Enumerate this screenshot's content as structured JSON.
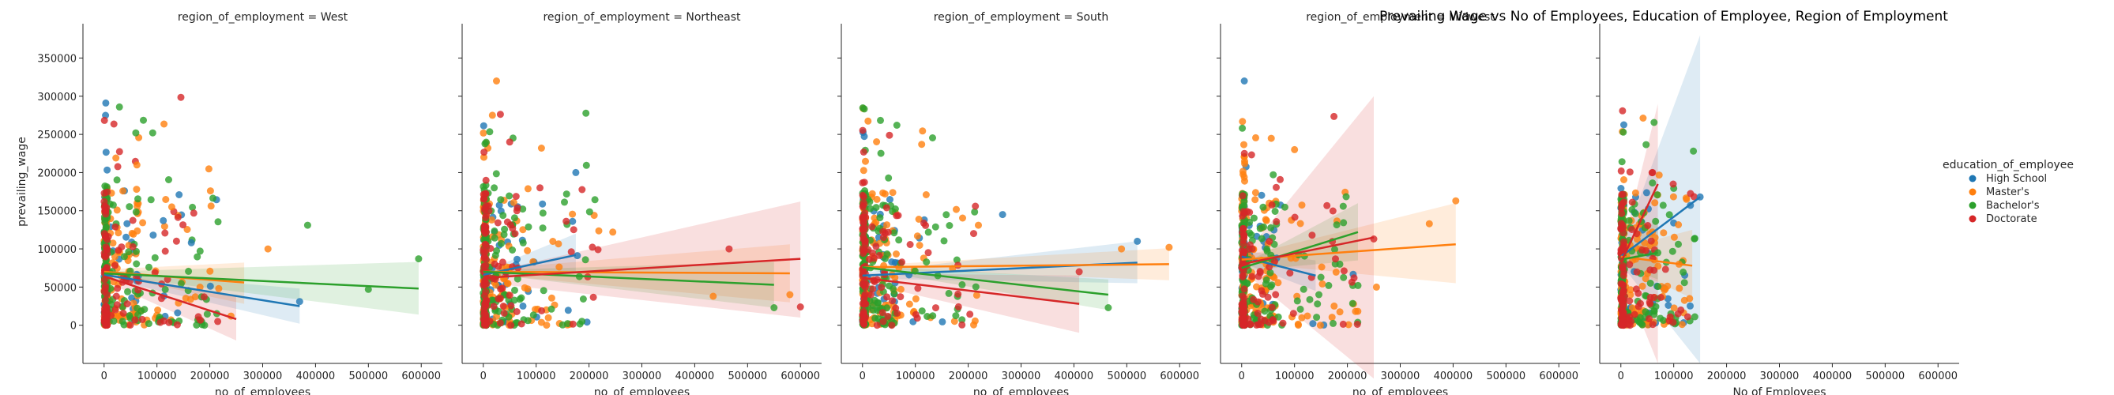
{
  "chart_data": {
    "type": "scatter",
    "title": "Prevailing Wage vs No of Employees, Education of Employee, Region of Employment",
    "ylabel": "prevailing_wage",
    "ylim": [
      -50000,
      395000
    ],
    "xlim": [
      -40000,
      640000
    ],
    "yticks": [
      0,
      50000,
      100000,
      150000,
      200000,
      250000,
      300000,
      350000
    ],
    "xticks": [
      0,
      100000,
      200000,
      300000,
      400000,
      500000,
      600000
    ],
    "grid": false,
    "legend": {
      "title": "education_of_employee",
      "placement": "right",
      "entries": [
        "High School",
        "Master's",
        "Bachelor's",
        "Doctorate"
      ]
    },
    "series_colors": {
      "High School": "#1f77b4",
      "Master's": "#ff7f0e",
      "Bachelor's": "#2ca02c",
      "Doctorate": "#d62728"
    },
    "panels": [
      {
        "title": "region_of_employment = West",
        "xlabel": "no_of_employees",
        "fits": [
          {
            "series": "High School",
            "x": [
              0,
              370000
            ],
            "y": [
              66000,
              25000
            ],
            "band": [
              [
                62000,
                70000
              ],
              [
                2000,
                48000
              ]
            ]
          },
          {
            "series": "Master's",
            "x": [
              0,
              265000
            ],
            "y": [
              70000,
              56000
            ],
            "band": [
              [
                67000,
                73000
              ],
              [
                28000,
                82000
              ]
            ]
          },
          {
            "series": "Bachelor's",
            "x": [
              0,
              595000
            ],
            "y": [
              68000,
              48000
            ],
            "band": [
              [
                66000,
                70000
              ],
              [
                14000,
                83000
              ]
            ]
          },
          {
            "series": "Doctorate",
            "x": [
              0,
              250000
            ],
            "y": [
              64000,
              8000
            ],
            "band": [
              [
                58000,
                70000
              ],
              [
                -20000,
                38000
              ]
            ]
          }
        ],
        "points": [
          {
            "series": "High School",
            "x": 112000,
            "y": 137000
          },
          {
            "series": "High School",
            "x": 370000,
            "y": 31000
          },
          {
            "series": "High School",
            "x": 165000,
            "y": 108000
          },
          {
            "series": "Master's",
            "x": 310000,
            "y": 100000
          },
          {
            "series": "Master's",
            "x": 62000,
            "y": 210000
          },
          {
            "series": "Master's",
            "x": 128000,
            "y": 155000
          },
          {
            "series": "Master's",
            "x": 240000,
            "y": 12000
          },
          {
            "series": "Bachelor's",
            "x": 595000,
            "y": 87000
          },
          {
            "series": "Bachelor's",
            "x": 500000,
            "y": 47000
          },
          {
            "series": "Bachelor's",
            "x": 385000,
            "y": 131000
          },
          {
            "series": "Bachelor's",
            "x": 60000,
            "y": 252000
          },
          {
            "series": "Bachelor's",
            "x": 92000,
            "y": 252000
          },
          {
            "series": "Doctorate",
            "x": 215000,
            "y": 5000
          },
          {
            "series": "Doctorate",
            "x": 120000,
            "y": 60000
          }
        ]
      },
      {
        "title": "region_of_employment = Northeast",
        "xlabel": "no_of_employees",
        "fits": [
          {
            "series": "High School",
            "x": [
              0,
              175000
            ],
            "y": [
              66000,
              92000
            ],
            "band": [
              [
                62000,
                70000
              ],
              [
                70000,
                120000
              ]
            ]
          },
          {
            "series": "Master's",
            "x": [
              0,
              580000
            ],
            "y": [
              70000,
              68000
            ],
            "band": [
              [
                67000,
                73000
              ],
              [
                30000,
                106000
              ]
            ]
          },
          {
            "series": "Bachelor's",
            "x": [
              0,
              550000
            ],
            "y": [
              70000,
              53000
            ],
            "band": [
              [
                68000,
                72000
              ],
              [
                23000,
                83000
              ]
            ]
          },
          {
            "series": "Doctorate",
            "x": [
              0,
              600000
            ],
            "y": [
              62000,
              87000
            ],
            "band": [
              [
                56000,
                68000
              ],
              [
                10000,
                162000
              ]
            ]
          }
        ],
        "points": [
          {
            "series": "High School",
            "x": 175000,
            "y": 200000
          },
          {
            "series": "Master's",
            "x": 25000,
            "y": 320000
          },
          {
            "series": "Master's",
            "x": 110000,
            "y": 232000
          },
          {
            "series": "Master's",
            "x": 245000,
            "y": 122000
          },
          {
            "series": "Master's",
            "x": 580000,
            "y": 40000
          },
          {
            "series": "Master's",
            "x": 435000,
            "y": 38000
          },
          {
            "series": "Bachelor's",
            "x": 550000,
            "y": 23000
          },
          {
            "series": "Doctorate",
            "x": 600000,
            "y": 24000
          },
          {
            "series": "Doctorate",
            "x": 465000,
            "y": 100000
          },
          {
            "series": "Doctorate",
            "x": 50000,
            "y": 240000
          }
        ]
      },
      {
        "title": "region_of_employment = South",
        "xlabel": "no_of_employees",
        "fits": [
          {
            "series": "High School",
            "x": [
              0,
              520000
            ],
            "y": [
              65000,
              82000
            ],
            "band": [
              [
                61000,
                69000
              ],
              [
                55000,
                110000
              ]
            ]
          },
          {
            "series": "Master's",
            "x": [
              0,
              580000
            ],
            "y": [
              76000,
              80000
            ],
            "band": [
              [
                74000,
                78000
              ],
              [
                59000,
                101000
              ]
            ]
          },
          {
            "series": "Bachelor's",
            "x": [
              0,
              465000
            ],
            "y": [
              76000,
              40000
            ],
            "band": [
              [
                74000,
                78000
              ],
              [
                20000,
                60000
              ]
            ]
          },
          {
            "series": "Doctorate",
            "x": [
              0,
              410000
            ],
            "y": [
              62000,
              28000
            ],
            "band": [
              [
                56000,
                68000
              ],
              [
                -10000,
                65000
              ]
            ]
          }
        ],
        "points": [
          {
            "series": "High School",
            "x": 520000,
            "y": 110000
          },
          {
            "series": "High School",
            "x": 265000,
            "y": 145000
          },
          {
            "series": "Master's",
            "x": 580000,
            "y": 102000
          },
          {
            "series": "Master's",
            "x": 112000,
            "y": 237000
          },
          {
            "series": "Master's",
            "x": 490000,
            "y": 100000
          },
          {
            "series": "Bachelor's",
            "x": 65000,
            "y": 262000
          },
          {
            "series": "Bachelor's",
            "x": 465000,
            "y": 23000
          },
          {
            "series": "Doctorate",
            "x": 410000,
            "y": 70000
          }
        ]
      },
      {
        "title": "region_of_employment = Midwest",
        "xlabel": "no_of_employees",
        "fits": [
          {
            "series": "High School",
            "x": [
              0,
              140000
            ],
            "y": [
              90000,
              65000
            ],
            "band": [
              [
                82000,
                98000
              ],
              [
                45000,
                85000
              ]
            ]
          },
          {
            "series": "Master's",
            "x": [
              0,
              405000
            ],
            "y": [
              86000,
              106000
            ],
            "band": [
              [
                82000,
                90000
              ],
              [
                55000,
                160000
              ]
            ]
          },
          {
            "series": "Bachelor's",
            "x": [
              0,
              220000
            ],
            "y": [
              75000,
              122000
            ],
            "band": [
              [
                71000,
                79000
              ],
              [
                85000,
                160000
              ]
            ]
          },
          {
            "series": "Doctorate",
            "x": [
              0,
              250000
            ],
            "y": [
              80000,
              115000
            ],
            "band": [
              [
                72000,
                88000
              ],
              [
                -70000,
                300000
              ]
            ]
          }
        ],
        "points": [
          {
            "series": "High School",
            "x": 5000,
            "y": 320000
          },
          {
            "series": "Master's",
            "x": 405000,
            "y": 163000
          },
          {
            "series": "Master's",
            "x": 355000,
            "y": 133000
          },
          {
            "series": "Master's",
            "x": 255000,
            "y": 50000
          },
          {
            "series": "Master's",
            "x": 100000,
            "y": 230000
          },
          {
            "series": "Bachelor's",
            "x": 220000,
            "y": 52000
          },
          {
            "series": "Doctorate",
            "x": 250000,
            "y": 113000
          }
        ]
      },
      {
        "title": "",
        "xlabel": "No of Employees",
        "fits": [
          {
            "series": "High School",
            "x": [
              0,
              150000
            ],
            "y": [
              90000,
              168000
            ],
            "band": [
              [
                80000,
                100000
              ],
              [
                -50000,
                380000
              ]
            ]
          },
          {
            "series": "Master's",
            "x": [
              0,
              135000
            ],
            "y": [
              90000,
              78000
            ],
            "band": [
              [
                80000,
                100000
              ],
              [
                35000,
                125000
              ]
            ]
          },
          {
            "series": "Bachelor's",
            "x": [
              0,
              70000
            ],
            "y": [
              86000,
              95000
            ],
            "band": [
              [
                78000,
                94000
              ],
              [
                60000,
                140000
              ]
            ]
          },
          {
            "series": "Doctorate",
            "x": [
              0,
              70000
            ],
            "y": [
              82000,
              185000
            ],
            "band": [
              [
                70000,
                94000
              ],
              [
                -50000,
                290000
              ]
            ]
          }
        ],
        "points": [
          {
            "series": "High School",
            "x": 150000,
            "y": 168000
          },
          {
            "series": "Master's",
            "x": 130000,
            "y": 35000
          },
          {
            "series": "Master's",
            "x": 110000,
            "y": 80000
          },
          {
            "series": "Bachelor's",
            "x": 70000,
            "y": 95000
          },
          {
            "series": "Doctorate",
            "x": 60000,
            "y": 200000
          },
          {
            "series": "Doctorate",
            "x": 30000,
            "y": 120000
          }
        ]
      }
    ]
  }
}
